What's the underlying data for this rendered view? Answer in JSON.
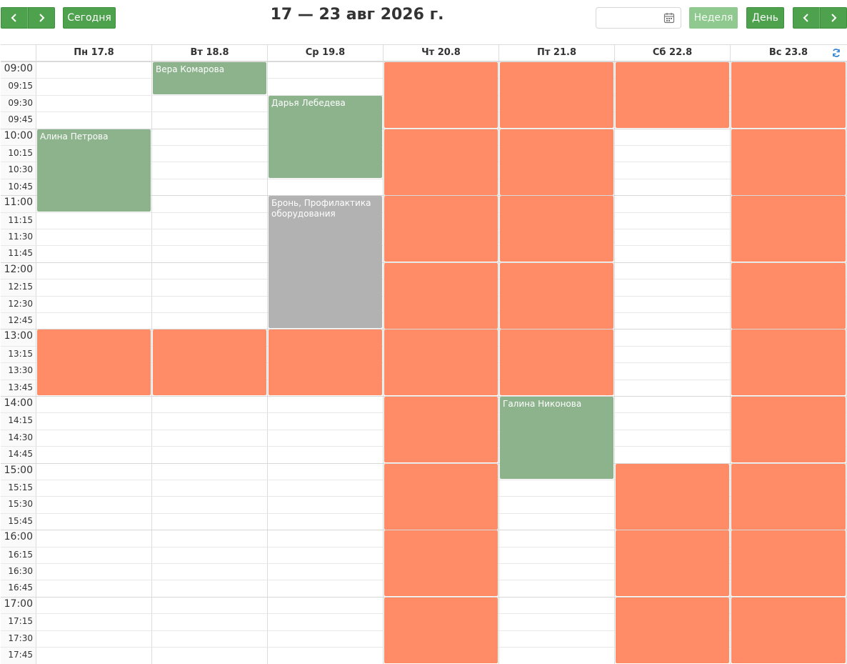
{
  "toolbar": {
    "today_label": "Сегодня",
    "title": "17 — 23 авг 2026 г.",
    "date_input_value": "",
    "week_label": "Неделя",
    "day_label": "День",
    "prev_icon": "chevron-left-icon",
    "next_icon": "chevron-right-icon",
    "calendar_icon": "calendar-icon"
  },
  "days": [
    {
      "label": "Пн 17.8"
    },
    {
      "label": "Вт 18.8"
    },
    {
      "label": "Ср 19.8"
    },
    {
      "label": "Чт 20.8"
    },
    {
      "label": "Пт 21.8"
    },
    {
      "label": "Сб 22.8"
    },
    {
      "label": "Вс 23.8"
    }
  ],
  "times": [
    "09:00",
    "09:15",
    "09:30",
    "09:45",
    "10:00",
    "10:15",
    "10:30",
    "10:45",
    "11:00",
    "11:15",
    "11:30",
    "11:45",
    "12:00",
    "12:15",
    "12:30",
    "12:45",
    "13:00",
    "13:15",
    "13:30",
    "13:45",
    "14:00",
    "14:15",
    "14:30",
    "14:45",
    "15:00",
    "15:15",
    "15:30",
    "15:45",
    "16:00",
    "16:15",
    "16:30",
    "16:45",
    "17:00",
    "17:15",
    "17:30",
    "17:45"
  ],
  "colors": {
    "button_green": "#4ea24e",
    "booked_green": "#8db38d",
    "reserved_gray": "#b2b2b2",
    "unavailable_orange": "#ff8c66",
    "sync_blue": "#2a7fd4"
  },
  "events": [
    {
      "day": 0,
      "start": "10:00",
      "end": "11:15",
      "type": "green",
      "title": "Алина Петрова"
    },
    {
      "day": 1,
      "start": "09:00",
      "end": "09:30",
      "type": "green",
      "title": "Вера Комарова"
    },
    {
      "day": 2,
      "start": "09:30",
      "end": "10:45",
      "type": "green",
      "title": "Дарья Лебедева"
    },
    {
      "day": 2,
      "start": "11:00",
      "end": "13:00",
      "type": "gray",
      "title": "Бронь, Профилактика оборудования"
    },
    {
      "day": 4,
      "start": "14:00",
      "end": "15:15",
      "type": "green",
      "title": "Галина Никонова"
    },
    {
      "day": 0,
      "start": "13:00",
      "end": "14:00",
      "type": "orange",
      "title": ""
    },
    {
      "day": 1,
      "start": "13:00",
      "end": "14:00",
      "type": "orange",
      "title": ""
    },
    {
      "day": 2,
      "start": "13:00",
      "end": "14:00",
      "type": "orange",
      "title": ""
    },
    {
      "day": 3,
      "start": "09:00",
      "end": "10:00",
      "type": "orange",
      "title": ""
    },
    {
      "day": 3,
      "start": "10:00",
      "end": "11:00",
      "type": "orange",
      "title": ""
    },
    {
      "day": 3,
      "start": "11:00",
      "end": "12:00",
      "type": "orange",
      "title": ""
    },
    {
      "day": 3,
      "start": "12:00",
      "end": "13:00",
      "type": "orange",
      "title": ""
    },
    {
      "day": 3,
      "start": "13:00",
      "end": "14:00",
      "type": "orange",
      "title": ""
    },
    {
      "day": 3,
      "start": "14:00",
      "end": "15:00",
      "type": "orange",
      "title": ""
    },
    {
      "day": 3,
      "start": "15:00",
      "end": "16:00",
      "type": "orange",
      "title": ""
    },
    {
      "day": 3,
      "start": "16:00",
      "end": "17:00",
      "type": "orange",
      "title": ""
    },
    {
      "day": 3,
      "start": "17:00",
      "end": "18:00",
      "type": "orange",
      "title": ""
    },
    {
      "day": 4,
      "start": "09:00",
      "end": "10:00",
      "type": "orange",
      "title": ""
    },
    {
      "day": 4,
      "start": "10:00",
      "end": "11:00",
      "type": "orange",
      "title": ""
    },
    {
      "day": 4,
      "start": "11:00",
      "end": "12:00",
      "type": "orange",
      "title": ""
    },
    {
      "day": 4,
      "start": "12:00",
      "end": "13:00",
      "type": "orange",
      "title": ""
    },
    {
      "day": 4,
      "start": "13:00",
      "end": "14:00",
      "type": "orange",
      "title": ""
    },
    {
      "day": 5,
      "start": "09:00",
      "end": "10:00",
      "type": "orange",
      "title": ""
    },
    {
      "day": 5,
      "start": "15:00",
      "end": "16:00",
      "type": "orange",
      "title": ""
    },
    {
      "day": 5,
      "start": "16:00",
      "end": "17:00",
      "type": "orange",
      "title": ""
    },
    {
      "day": 5,
      "start": "17:00",
      "end": "18:00",
      "type": "orange",
      "title": ""
    },
    {
      "day": 6,
      "start": "09:00",
      "end": "10:00",
      "type": "orange",
      "title": ""
    },
    {
      "day": 6,
      "start": "10:00",
      "end": "11:00",
      "type": "orange",
      "title": ""
    },
    {
      "day": 6,
      "start": "11:00",
      "end": "12:00",
      "type": "orange",
      "title": ""
    },
    {
      "day": 6,
      "start": "12:00",
      "end": "13:00",
      "type": "orange",
      "title": ""
    },
    {
      "day": 6,
      "start": "13:00",
      "end": "14:00",
      "type": "orange",
      "title": ""
    },
    {
      "day": 6,
      "start": "14:00",
      "end": "15:00",
      "type": "orange",
      "title": ""
    },
    {
      "day": 6,
      "start": "15:00",
      "end": "16:00",
      "type": "orange",
      "title": ""
    },
    {
      "day": 6,
      "start": "16:00",
      "end": "17:00",
      "type": "orange",
      "title": ""
    },
    {
      "day": 6,
      "start": "17:00",
      "end": "18:00",
      "type": "orange",
      "title": ""
    }
  ]
}
